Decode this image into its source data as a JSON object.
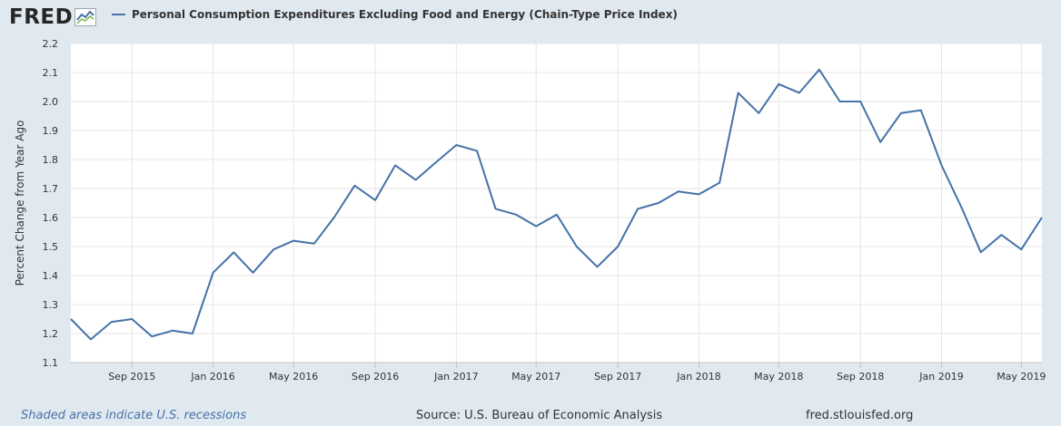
{
  "header": {
    "logo_text": "FRED",
    "series_title": "Personal Consumption Expenditures Excluding Food and Energy (Chain-Type Price Index)"
  },
  "colors": {
    "series": "#4572a7",
    "background": "#e1e9f0",
    "plot_bg": "#ffffff",
    "grid": "#e6e6e6"
  },
  "chart_data": {
    "type": "line",
    "title": "Personal Consumption Expenditures Excluding Food and Energy (Chain-Type Price Index)",
    "xlabel": "",
    "ylabel": "Percent Change from Year Ago",
    "ylim": [
      1.1,
      2.2
    ],
    "yticks": [
      1.1,
      1.2,
      1.3,
      1.4,
      1.5,
      1.6,
      1.7,
      1.8,
      1.9,
      2.0,
      2.1,
      2.2
    ],
    "yticklabels": [
      "1.1",
      "1.2",
      "1.3",
      "1.4",
      "1.5",
      "1.6",
      "1.7",
      "1.8",
      "1.9",
      "2.0",
      "2.1",
      "2.2"
    ],
    "xlim": [
      "2015-06-01",
      "2019-06-01"
    ],
    "xticks": [
      {
        "label": "Sep 2015",
        "date": "2015-09-01"
      },
      {
        "label": "Jan 2016",
        "date": "2016-01-01"
      },
      {
        "label": "May 2016",
        "date": "2016-05-01"
      },
      {
        "label": "Sep 2016",
        "date": "2016-09-01"
      },
      {
        "label": "Jan 2017",
        "date": "2017-01-01"
      },
      {
        "label": "May 2017",
        "date": "2017-05-01"
      },
      {
        "label": "Sep 2017",
        "date": "2017-09-01"
      },
      {
        "label": "Jan 2018",
        "date": "2018-01-01"
      },
      {
        "label": "May 2018",
        "date": "2018-05-01"
      },
      {
        "label": "Sep 2018",
        "date": "2018-09-01"
      },
      {
        "label": "Jan 2019",
        "date": "2019-01-01"
      },
      {
        "label": "May 2019",
        "date": "2019-05-01"
      }
    ],
    "grid": true,
    "legend": "top-left",
    "series": [
      {
        "name": "Personal Consumption Expenditures Excluding Food and Energy (Chain-Type Price Index)",
        "x": [
          "2015-06-01",
          "2015-07-01",
          "2015-08-01",
          "2015-09-01",
          "2015-10-01",
          "2015-11-01",
          "2015-12-01",
          "2016-01-01",
          "2016-02-01",
          "2016-03-01",
          "2016-04-01",
          "2016-05-01",
          "2016-06-01",
          "2016-07-01",
          "2016-08-01",
          "2016-09-01",
          "2016-10-01",
          "2016-11-01",
          "2016-12-01",
          "2017-01-01",
          "2017-02-01",
          "2017-03-01",
          "2017-04-01",
          "2017-05-01",
          "2017-06-01",
          "2017-07-01",
          "2017-08-01",
          "2017-09-01",
          "2017-10-01",
          "2017-11-01",
          "2017-12-01",
          "2018-01-01",
          "2018-02-01",
          "2018-03-01",
          "2018-04-01",
          "2018-05-01",
          "2018-06-01",
          "2018-07-01",
          "2018-08-01",
          "2018-09-01",
          "2018-10-01",
          "2018-11-01",
          "2018-12-01",
          "2019-01-01",
          "2019-02-01",
          "2019-03-01",
          "2019-04-01",
          "2019-05-01",
          "2019-06-01"
        ],
        "values": [
          1.25,
          1.18,
          1.24,
          1.25,
          1.19,
          1.21,
          1.2,
          1.41,
          1.48,
          1.41,
          1.49,
          1.52,
          1.51,
          1.6,
          1.71,
          1.66,
          1.78,
          1.73,
          1.79,
          1.85,
          1.83,
          1.63,
          1.61,
          1.57,
          1.61,
          1.5,
          1.43,
          1.5,
          1.63,
          1.65,
          1.69,
          1.68,
          1.72,
          2.03,
          1.96,
          2.06,
          2.03,
          2.11,
          2.0,
          2.0,
          1.86,
          1.96,
          1.97,
          1.78,
          1.63,
          1.48,
          1.54,
          1.49,
          1.6
        ]
      }
    ]
  },
  "footer": {
    "recession_note": "Shaded areas indicate U.S. recessions",
    "source": "Source: U.S. Bureau of Economic Analysis",
    "site": "fred.stlouisfed.org"
  }
}
